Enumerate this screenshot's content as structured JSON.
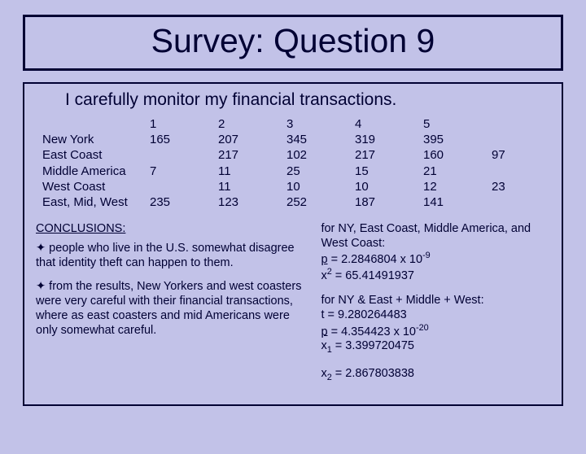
{
  "title": "Survey: Question 9",
  "statement": "I carefully monitor my financial transactions.",
  "table": {
    "headers": [
      "1",
      "2",
      "3",
      "4",
      "5",
      ""
    ],
    "rows": [
      {
        "label": "New York",
        "cells": [
          "165",
          "207",
          "345",
          "319",
          "395",
          ""
        ]
      },
      {
        "label": "East Coast",
        "cells": [
          "",
          "217",
          "102",
          "217",
          "160",
          "97"
        ]
      },
      {
        "label": "Middle America",
        "cells": [
          "7",
          "11",
          "25",
          "15",
          "21",
          ""
        ]
      },
      {
        "label": "West Coast",
        "cells": [
          "",
          "11",
          "10",
          "10",
          "12",
          "23"
        ]
      },
      {
        "label": "East, Mid, West",
        "cells": [
          "235",
          "123",
          "252",
          "187",
          "141",
          ""
        ]
      }
    ]
  },
  "conclusions_label": "CONCLUSIONS:",
  "bullets": [
    "✦ people who live in the U.S. somewhat disagree that identity theft can happen to them.",
    "✦  from the results, New Yorkers and west coasters were very careful with their financial transactions, where as east coasters and mid Americans were only somewhat careful."
  ],
  "stats1": {
    "intro": "for NY, East Coast, Middle America, and West Coast:",
    "p_label": "p",
    "p_val": " = 2.2846804 x 10",
    "p_exp": "-9",
    "x2_label": "x",
    "x2_sub": "2",
    "x2_val": " = 65.41491937"
  },
  "stats2": {
    "intro": "for NY & East + Middle + West:",
    "t_line": "t = 9.280264483",
    "p_label": "p",
    "p_val": " = 4.354423 x 10",
    "p_exp": "-20",
    "x1_label": "x",
    "x1_sub": "1",
    "x1_val": " = 3.399720475",
    "x2_label": "x",
    "x2_sub": "2",
    "x2_val": " = 2.867803838"
  }
}
